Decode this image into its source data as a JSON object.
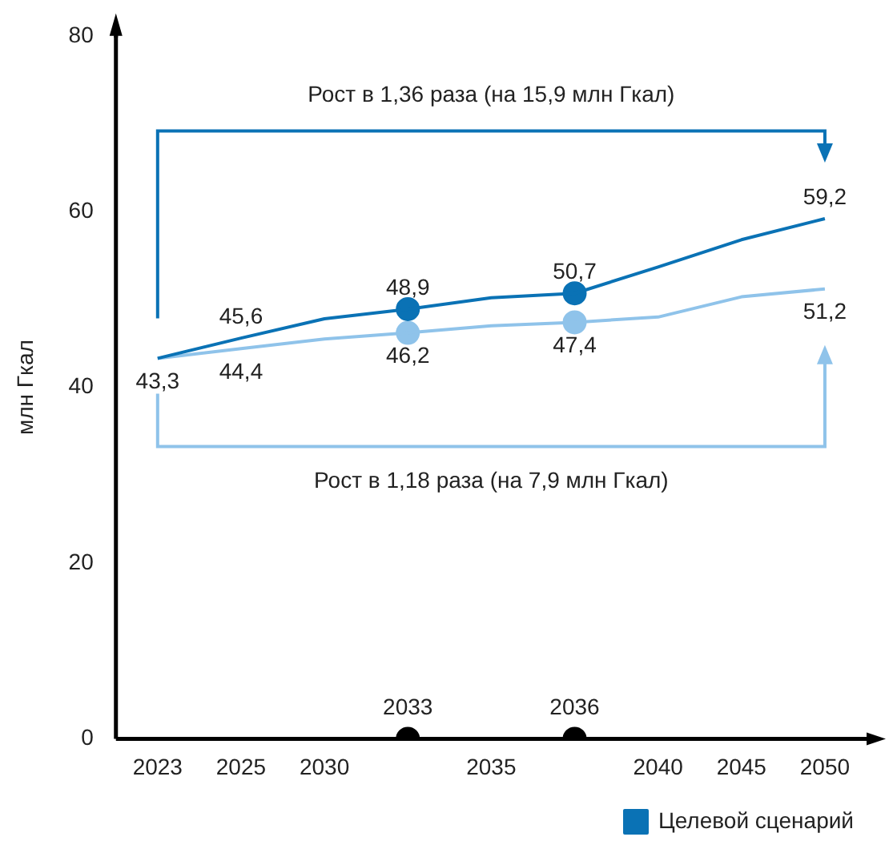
{
  "chart_data": {
    "type": "line",
    "ylabel": "млн Гкал",
    "categories": [
      "2023",
      "2025",
      "2030",
      "2033",
      "2035",
      "2036",
      "2040",
      "2045",
      "2050"
    ],
    "series": [
      {
        "name": "Целевой сценарий",
        "color": "#0a72b5",
        "marker": "none",
        "values": [
          43.3,
          45.6,
          47.8,
          48.9,
          50.2,
          50.7,
          53.7,
          56.8,
          59.2
        ],
        "value_labels": [
          null,
          "45,6",
          null,
          "48,9",
          null,
          "50,7",
          null,
          null,
          "59,2"
        ]
      },
      {
        "color": "#8fc3ea",
        "marker": "none",
        "values": [
          43.3,
          44.4,
          45.5,
          46.2,
          47.0,
          47.4,
          48.0,
          50.3,
          51.2
        ],
        "value_labels": [
          "43,3",
          "44,4",
          null,
          "46,2",
          null,
          "47,4",
          null,
          null,
          "51,2"
        ]
      },
      {
        "type": "scatter",
        "color": "#0a72b5",
        "marker": "circle",
        "values": [
          null,
          null,
          null,
          48.9,
          null,
          50.7,
          null,
          null,
          null
        ]
      },
      {
        "type": "scatter",
        "color": "#8fc3ea",
        "marker": "circle",
        "values": [
          null,
          null,
          null,
          46.2,
          null,
          47.4,
          null,
          null,
          null
        ]
      },
      {
        "type": "scatter",
        "color": "#000000",
        "marker": "circle",
        "values": [
          null,
          null,
          null,
          0,
          null,
          0,
          null,
          null,
          null
        ]
      }
    ],
    "ylim": [
      0,
      80
    ],
    "yticks": [
      0,
      20,
      40,
      60,
      80
    ],
    "grid": false,
    "legend": "bottom right",
    "line_style": "solid",
    "annotations": [
      "Рост в 1,36 раза (на 15,9 млн Гкал)",
      "Рост в 1,18 раза (на 7,9 млн Гкал)"
    ]
  }
}
